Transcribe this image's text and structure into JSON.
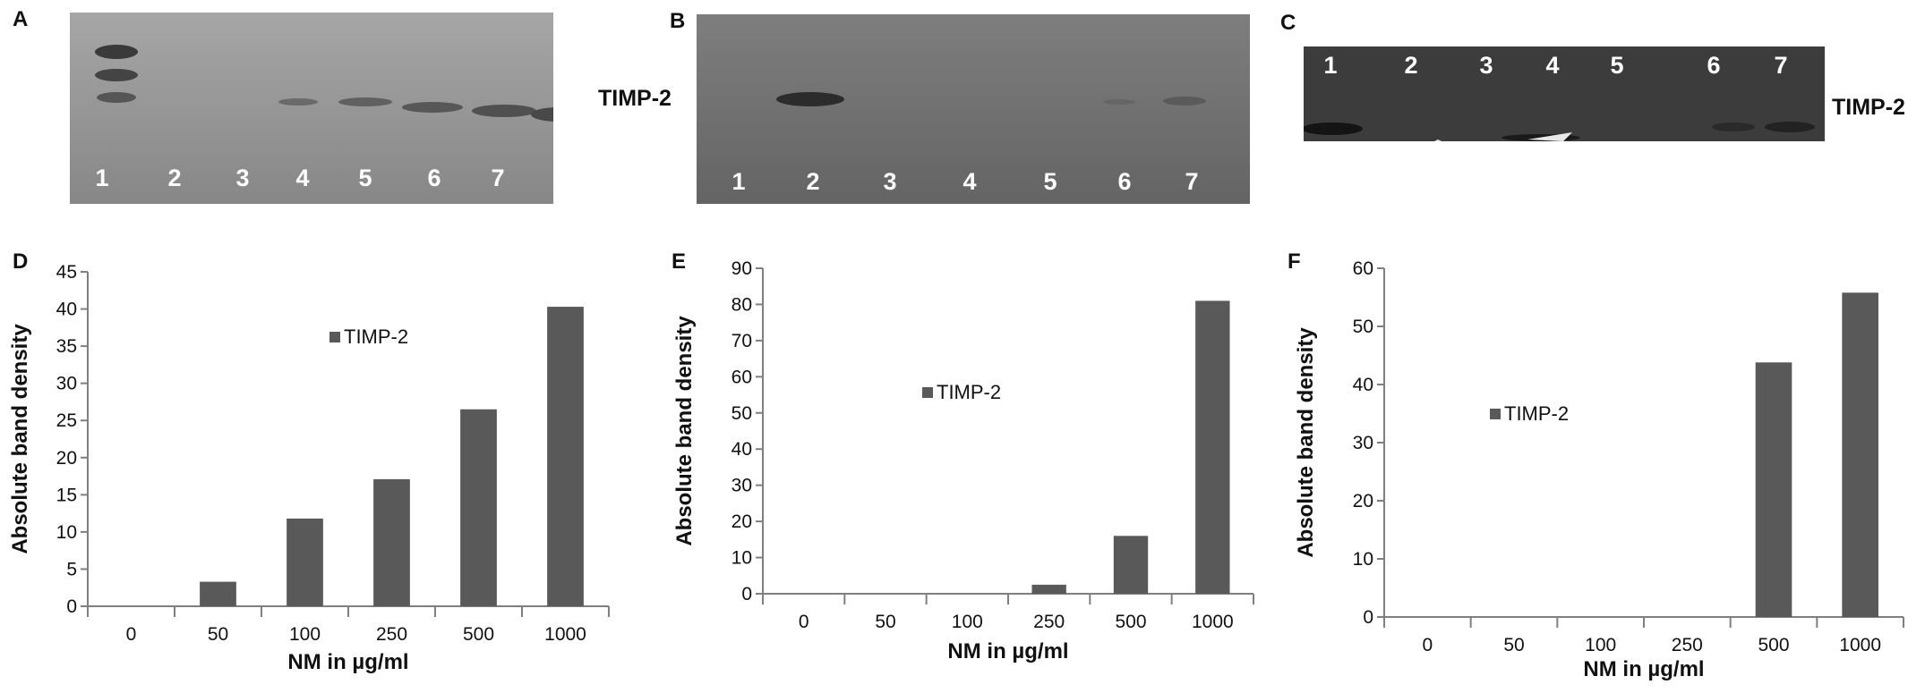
{
  "blots": [
    {
      "panel": "A",
      "lanes": [
        "1",
        "2",
        "3",
        "4",
        "5",
        "6",
        "7"
      ],
      "protein": "TIMP-2"
    },
    {
      "panel": "B",
      "lanes": [
        "1",
        "2",
        "3",
        "4",
        "5",
        "6",
        "7"
      ],
      "protein": ""
    },
    {
      "panel": "C",
      "lanes": [
        "1",
        "2",
        "3",
        "4",
        "5",
        "6",
        "7"
      ],
      "protein": "TIMP-2"
    }
  ],
  "colors": {
    "bar": "#595959",
    "axis": "#7f7f7f"
  },
  "chart_data": [
    {
      "panel": "D",
      "type": "bar",
      "categories": [
        "0",
        "50",
        "100",
        "250",
        "500",
        "1000"
      ],
      "series": [
        {
          "name": "TIMP-2",
          "values": [
            0,
            3.3,
            11.8,
            17.1,
            26.5,
            40.3
          ]
        }
      ],
      "xlabel": "NM in µg/ml",
      "ylabel": "Absolute band density",
      "ylim": [
        0,
        45
      ],
      "yticks": [
        "0",
        "5",
        "10",
        "15",
        "20",
        "25",
        "30",
        "35",
        "40",
        "45"
      ],
      "legend": "inside-center"
    },
    {
      "panel": "E",
      "type": "bar",
      "categories": [
        "0",
        "50",
        "100",
        "250",
        "500",
        "1000"
      ],
      "series": [
        {
          "name": "TIMP-2",
          "values": [
            0,
            0,
            0,
            2.5,
            16,
            81
          ]
        }
      ],
      "xlabel": "NM in µg/ml",
      "ylabel": "Absolute band density",
      "ylim": [
        0,
        90
      ],
      "yticks": [
        "0",
        "10",
        "20",
        "30",
        "40",
        "50",
        "60",
        "70",
        "80",
        "90"
      ],
      "legend": "inside-center"
    },
    {
      "panel": "F",
      "type": "bar",
      "categories": [
        "0",
        "50",
        "100",
        "250",
        "500",
        "1000"
      ],
      "series": [
        {
          "name": "TIMP-2",
          "values": [
            0,
            0,
            0,
            0,
            43.8,
            55.8
          ]
        }
      ],
      "xlabel": "NM in µg/ml",
      "ylabel": "Absolute band density",
      "ylim": [
        0,
        60
      ],
      "yticks": [
        "0",
        "10",
        "20",
        "30",
        "40",
        "50",
        "60"
      ],
      "legend": "inside-left"
    }
  ]
}
